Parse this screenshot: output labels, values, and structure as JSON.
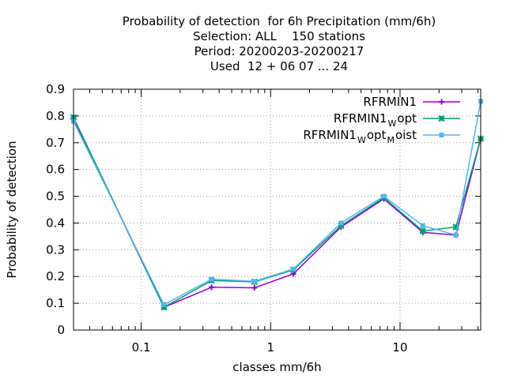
{
  "chart_data": {
    "type": "line",
    "title_lines": [
      "Probability of detection  for 6h Precipitation (mm/6h)",
      "Selection: ALL    150 stations",
      "Period: 20200203-20200217",
      "Used  12 + 06 07 ... 24"
    ],
    "xlabel": "classes mm/6h",
    "ylabel": "Probability of detection",
    "x_scale": "log",
    "xlim": [
      0.03,
      42
    ],
    "ylim": [
      0,
      0.9
    ],
    "x_ticks": [
      0.1,
      1,
      10
    ],
    "x_tick_labels": [
      "0.1",
      "1",
      "10"
    ],
    "y_ticks": [
      0,
      0.1,
      0.2,
      0.3,
      0.4,
      0.5,
      0.6,
      0.7,
      0.8,
      0.9
    ],
    "y_tick_labels": [
      "0",
      "0.1",
      "0.2",
      "0.3",
      "0.4",
      "0.5",
      "0.6",
      "0.7",
      "0.8",
      "0.9"
    ],
    "grid": true,
    "legend_position": "top-right",
    "x": [
      0.03,
      0.15,
      0.35,
      0.75,
      1.5,
      3.5,
      7.5,
      15,
      27,
      42
    ],
    "series": [
      {
        "name": "RFRMIN1",
        "legend_main": "RFRMIN1",
        "legend_sub": "",
        "legend_tail": "",
        "legend_sub2": "",
        "legend_tail2": "",
        "color": "#9400d3",
        "marker": "plus",
        "values": [
          0.79,
          0.085,
          0.16,
          0.158,
          0.21,
          0.385,
          0.49,
          0.365,
          0.355,
          0.715
        ]
      },
      {
        "name": "RFRMIN1 W opt",
        "legend_main": "RFRMIN1",
        "legend_sub": "W",
        "legend_tail": "opt",
        "legend_sub2": "",
        "legend_tail2": "",
        "color": "#009e73",
        "marker": "star",
        "values": [
          0.795,
          0.085,
          0.185,
          0.18,
          0.225,
          0.39,
          0.495,
          0.37,
          0.385,
          0.715
        ]
      },
      {
        "name": "RFRMIN1 W opt M oist",
        "legend_main": "RFRMIN1",
        "legend_sub": "W",
        "legend_tail": "opt",
        "legend_sub2": "M",
        "legend_tail2": "oist",
        "color": "#56b4e9",
        "marker": "box",
        "values": [
          0.78,
          0.095,
          0.19,
          0.182,
          0.228,
          0.4,
          0.5,
          0.39,
          0.355,
          0.855
        ]
      }
    ]
  }
}
